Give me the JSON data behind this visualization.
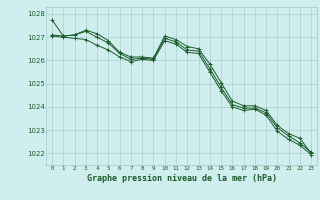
{
  "title": "Graphe pression niveau de la mer (hPa)",
  "xlim": [
    -0.5,
    23.5
  ],
  "ylim": [
    1021.5,
    1028.3
  ],
  "yticks": [
    1022,
    1023,
    1024,
    1025,
    1026,
    1027,
    1028
  ],
  "xticks": [
    0,
    1,
    2,
    3,
    4,
    5,
    6,
    7,
    8,
    9,
    10,
    11,
    12,
    13,
    14,
    15,
    16,
    17,
    18,
    19,
    20,
    21,
    22,
    23
  ],
  "bg_color": "#d0eeee",
  "grid_color": "#a0c8c8",
  "line_color": "#1a5c2a",
  "series": [
    [
      1027.75,
      1027.05,
      1027.1,
      1027.3,
      1027.15,
      1026.85,
      1026.35,
      1026.15,
      1026.15,
      1026.1,
      1027.05,
      1026.9,
      1026.6,
      1026.5,
      1025.85,
      1025.05,
      1024.25,
      1024.05,
      1024.05,
      1023.85,
      1023.2,
      1022.85,
      1022.65,
      1022.0
    ],
    [
      1027.1,
      1027.05,
      1027.1,
      1027.25,
      1027.0,
      1026.75,
      1026.3,
      1026.05,
      1026.1,
      1026.05,
      1026.95,
      1026.8,
      1026.45,
      1026.4,
      1025.65,
      1024.85,
      1024.1,
      1023.95,
      1023.95,
      1023.75,
      1023.1,
      1022.75,
      1022.45,
      1022.05
    ],
    [
      1027.05,
      1027.0,
      1026.95,
      1026.9,
      1026.65,
      1026.45,
      1026.15,
      1025.95,
      1026.05,
      1026.0,
      1026.85,
      1026.7,
      1026.35,
      1026.3,
      1025.5,
      1024.7,
      1024.0,
      1023.85,
      1023.9,
      1023.65,
      1022.95,
      1022.6,
      1022.35,
      1021.95
    ]
  ]
}
